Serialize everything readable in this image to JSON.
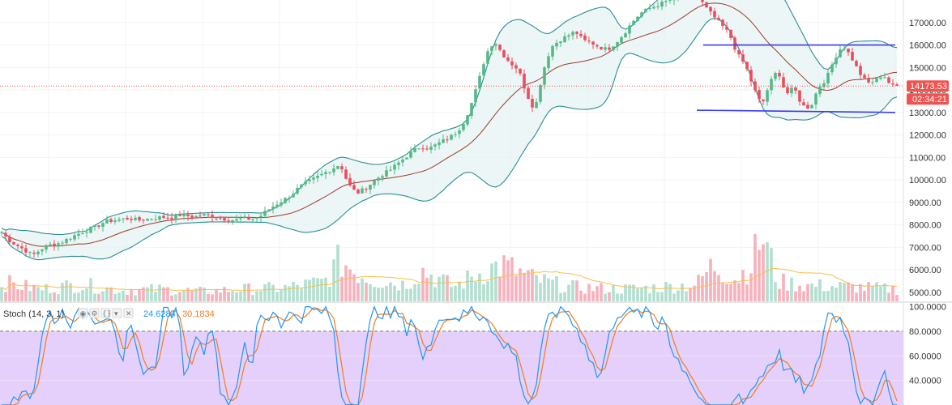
{
  "chart_data": [
    {
      "type": "candlestick",
      "panel": "price",
      "ylim": [
        4600,
        18000
      ],
      "y_ticks": [
        5000,
        6000,
        7000,
        8000,
        9000,
        10000,
        11000,
        12000,
        13000,
        14000,
        15000,
        16000,
        17000
      ],
      "y_tick_labels": [
        "5000.00",
        "6000.00",
        "7000.00",
        "8000.00",
        "9000.00",
        "10000.00",
        "11000.00",
        "12000.00",
        "13000.00",
        "14000.00",
        "15000.00",
        "16000.00",
        "17000.00"
      ],
      "last_price": 14173.53,
      "last_price_label": "14173.53",
      "countdown_label": "02:34:21",
      "close_anchors": [
        [
          0,
          7750
        ],
        [
          10,
          7350
        ],
        [
          20,
          7100
        ],
        [
          30,
          6900
        ],
        [
          40,
          6650
        ],
        [
          50,
          6900
        ],
        [
          60,
          7100
        ],
        [
          70,
          7150
        ],
        [
          80,
          7300
        ],
        [
          90,
          7500
        ],
        [
          100,
          7650
        ],
        [
          110,
          7800
        ],
        [
          120,
          7950
        ],
        [
          130,
          8150
        ],
        [
          140,
          8200
        ],
        [
          150,
          8250
        ],
        [
          160,
          8300
        ],
        [
          170,
          8200
        ],
        [
          180,
          8250
        ],
        [
          190,
          8300
        ],
        [
          200,
          8350
        ],
        [
          210,
          8300
        ],
        [
          220,
          8450
        ],
        [
          230,
          8400
        ],
        [
          240,
          8350
        ],
        [
          250,
          8450
        ],
        [
          260,
          8400
        ],
        [
          270,
          8300
        ],
        [
          280,
          8250
        ],
        [
          290,
          8200
        ],
        [
          300,
          8300
        ],
        [
          310,
          8250
        ],
        [
          320,
          8350
        ],
        [
          330,
          8650
        ],
        [
          340,
          8900
        ],
        [
          350,
          9100
        ],
        [
          360,
          9350
        ],
        [
          370,
          9700
        ],
        [
          380,
          9900
        ],
        [
          390,
          10100
        ],
        [
          400,
          10300
        ],
        [
          410,
          10500
        ],
        [
          420,
          10700
        ],
        [
          430,
          9800
        ],
        [
          440,
          9400
        ],
        [
          450,
          9600
        ],
        [
          460,
          9900
        ],
        [
          470,
          10200
        ],
        [
          480,
          10400
        ],
        [
          490,
          10700
        ],
        [
          500,
          11000
        ],
        [
          510,
          11300
        ],
        [
          520,
          11500
        ],
        [
          530,
          11400
        ],
        [
          540,
          11600
        ],
        [
          550,
          11800
        ],
        [
          560,
          12000
        ],
        [
          570,
          12400
        ],
        [
          580,
          13200
        ],
        [
          590,
          14300
        ],
        [
          600,
          15600
        ],
        [
          610,
          16200
        ],
        [
          620,
          15600
        ],
        [
          630,
          15200
        ],
        [
          640,
          14900
        ],
        [
          650,
          13800
        ],
        [
          660,
          13100
        ],
        [
          670,
          14800
        ],
        [
          680,
          15900
        ],
        [
          690,
          16200
        ],
        [
          700,
          16400
        ],
        [
          710,
          16600
        ],
        [
          720,
          16200
        ],
        [
          730,
          16100
        ],
        [
          740,
          15900
        ],
        [
          750,
          15800
        ],
        [
          760,
          16100
        ],
        [
          770,
          16500
        ],
        [
          780,
          17000
        ],
        [
          790,
          17400
        ],
        [
          800,
          17600
        ],
        [
          820,
          17900
        ],
        [
          840,
          18200
        ],
        [
          860,
          18300
        ],
        [
          870,
          17700
        ],
        [
          880,
          17300
        ],
        [
          890,
          16900
        ],
        [
          900,
          16500
        ],
        [
          910,
          15600
        ],
        [
          920,
          15100
        ],
        [
          930,
          14100
        ],
        [
          940,
          13300
        ],
        [
          950,
          14300
        ],
        [
          960,
          14900
        ],
        [
          970,
          13800
        ],
        [
          980,
          14100
        ],
        [
          990,
          13300
        ],
        [
          1000,
          13200
        ],
        [
          1010,
          14100
        ],
        [
          1020,
          14500
        ],
        [
          1030,
          15400
        ],
        [
          1040,
          16000
        ],
        [
          1050,
          15500
        ],
        [
          1060,
          14800
        ],
        [
          1070,
          14300
        ],
        [
          1080,
          14400
        ],
        [
          1090,
          14700
        ],
        [
          1100,
          14170
        ]
      ],
      "volume_anchors": [
        [
          0,
          800
        ],
        [
          50,
          500
        ],
        [
          100,
          700
        ],
        [
          150,
          450
        ],
        [
          200,
          500
        ],
        [
          250,
          400
        ],
        [
          300,
          500
        ],
        [
          350,
          550
        ],
        [
          400,
          800
        ],
        [
          420,
          1700
        ],
        [
          440,
          1200
        ],
        [
          460,
          900
        ],
        [
          500,
          700
        ],
        [
          520,
          1300
        ],
        [
          560,
          600
        ],
        [
          600,
          1300
        ],
        [
          620,
          1500
        ],
        [
          660,
          900
        ],
        [
          700,
          600
        ],
        [
          760,
          500
        ],
        [
          800,
          550
        ],
        [
          860,
          700
        ],
        [
          880,
          1500
        ],
        [
          910,
          900
        ],
        [
          930,
          1700
        ],
        [
          940,
          2800
        ],
        [
          960,
          800
        ],
        [
          1000,
          650
        ],
        [
          1050,
          600
        ],
        [
          1100,
          500
        ]
      ],
      "volume_max": 3000,
      "support_line": {
        "x": [
          860,
          1105
        ],
        "y": [
          13100,
          13000
        ]
      },
      "resistance_line": {
        "x": [
          868,
          1105
        ],
        "y": [
          16000,
          16000
        ]
      }
    },
    {
      "type": "line",
      "panel": "oscillator",
      "title": "Stoch (14, 3, 1)",
      "k_label": "24.6284",
      "d_label": "30.1834",
      "ylim": [
        20,
        103
      ],
      "y_ticks": [
        40,
        60,
        80,
        100
      ],
      "y_tick_labels": [
        "40.0000",
        "60.0000",
        "80.0000",
        "100.0000"
      ],
      "overbought": 80,
      "oversold": 20,
      "k_anchors": [
        [
          0,
          20
        ],
        [
          20,
          20
        ],
        [
          30,
          38
        ],
        [
          40,
          25
        ],
        [
          50,
          70
        ],
        [
          60,
          95
        ],
        [
          70,
          90
        ],
        [
          80,
          97
        ],
        [
          90,
          85
        ],
        [
          100,
          95
        ],
        [
          110,
          97
        ],
        [
          120,
          90
        ],
        [
          130,
          95
        ],
        [
          140,
          93
        ],
        [
          150,
          40
        ],
        [
          160,
          88
        ],
        [
          170,
          55
        ],
        [
          180,
          50
        ],
        [
          190,
          45
        ],
        [
          200,
          95
        ],
        [
          210,
          98
        ],
        [
          220,
          90
        ],
        [
          230,
          35
        ],
        [
          240,
          85
        ],
        [
          250,
          60
        ],
        [
          260,
          95
        ],
        [
          270,
          40
        ],
        [
          280,
          20
        ],
        [
          290,
          30
        ],
        [
          300,
          70
        ],
        [
          310,
          45
        ],
        [
          320,
          97
        ],
        [
          330,
          90
        ],
        [
          340,
          98
        ],
        [
          350,
          85
        ],
        [
          360,
          96
        ],
        [
          370,
          92
        ],
        [
          380,
          98
        ],
        [
          390,
          95
        ],
        [
          400,
          97
        ],
        [
          410,
          90
        ],
        [
          420,
          30
        ],
        [
          430,
          22
        ],
        [
          440,
          18
        ],
        [
          450,
          60
        ],
        [
          460,
          95
        ],
        [
          470,
          98
        ],
        [
          480,
          92
        ],
        [
          490,
          97
        ],
        [
          500,
          80
        ],
        [
          510,
          95
        ],
        [
          520,
          55
        ],
        [
          530,
          65
        ],
        [
          540,
          97
        ],
        [
          550,
          88
        ],
        [
          560,
          95
        ],
        [
          570,
          90
        ],
        [
          580,
          98
        ],
        [
          590,
          92
        ],
        [
          600,
          95
        ],
        [
          610,
          80
        ],
        [
          620,
          65
        ],
        [
          630,
          70
        ],
        [
          640,
          50
        ],
        [
          650,
          20
        ],
        [
          660,
          30
        ],
        [
          670,
          70
        ],
        [
          680,
          98
        ],
        [
          690,
          95
        ],
        [
          700,
          97
        ],
        [
          710,
          82
        ],
        [
          720,
          75
        ],
        [
          730,
          55
        ],
        [
          740,
          40
        ],
        [
          750,
          70
        ],
        [
          760,
          95
        ],
        [
          770,
          98
        ],
        [
          780,
          92
        ],
        [
          790,
          95
        ],
        [
          800,
          97
        ],
        [
          810,
          80
        ],
        [
          820,
          98
        ],
        [
          830,
          60
        ],
        [
          840,
          55
        ],
        [
          850,
          45
        ],
        [
          860,
          30
        ],
        [
          870,
          20
        ],
        [
          880,
          10
        ],
        [
          890,
          15
        ],
        [
          900,
          8
        ],
        [
          910,
          30
        ],
        [
          920,
          25
        ],
        [
          930,
          35
        ],
        [
          940,
          45
        ],
        [
          950,
          55
        ],
        [
          960,
          62
        ],
        [
          970,
          50
        ],
        [
          980,
          40
        ],
        [
          990,
          35
        ],
        [
          1000,
          32
        ],
        [
          1010,
          55
        ],
        [
          1020,
          95
        ],
        [
          1030,
          92
        ],
        [
          1040,
          90
        ],
        [
          1050,
          60
        ],
        [
          1060,
          25
        ],
        [
          1070,
          30
        ],
        [
          1080,
          20
        ],
        [
          1090,
          45
        ],
        [
          1100,
          25
        ]
      ]
    }
  ],
  "colors": {
    "up": "#26a69a",
    "up_body": "#53b987",
    "down": "#ef5350",
    "down_body": "#eb4d5c",
    "band": "#2b8d91",
    "band_fill": "#e6f3f3",
    "basis": "#9b3b2c",
    "vol_up": "#b2dfcf",
    "vol_down": "#f7b1bc",
    "vol_ma": "#f5c04a",
    "hline": "#3a3af0",
    "k_line": "#2196f3",
    "d_line": "#ef7d1e",
    "stoch_bg": "#e1c8fa",
    "last_price_bg": "#ef5350"
  }
}
